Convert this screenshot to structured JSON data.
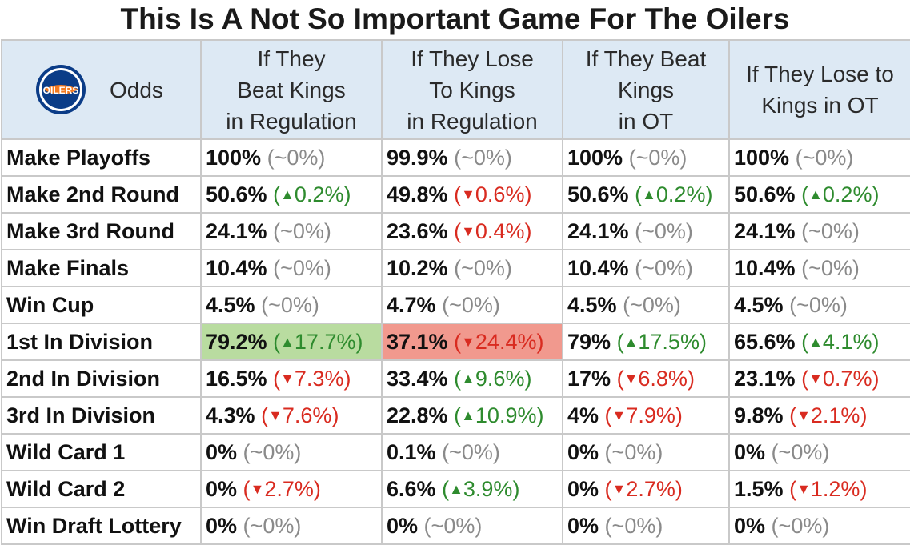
{
  "title": "This Is A Not So Important Game For The Oilers",
  "logo": {
    "text": "OILERS",
    "colors": {
      "blue": "#0b3c87",
      "orange": "#f47a20"
    }
  },
  "colors": {
    "up": "#2e8b2e",
    "down": "#d92b20",
    "neutral": "#8a8a8a",
    "header_bg": "#dde9f4",
    "highlight_green": "#b9dca0",
    "highlight_red": "#f1998e"
  },
  "chart_data": {
    "type": "table",
    "title": "This Is A Not So Important Game For The Oilers",
    "corner_label": "Odds",
    "columns": [
      [
        "If They",
        "Beat Kings",
        "in Regulation"
      ],
      [
        "If They Lose",
        "To Kings",
        "in Regulation"
      ],
      [
        "If They Beat",
        "Kings",
        "in OT"
      ],
      [
        "If They Lose to",
        "Kings in OT"
      ]
    ],
    "rows": [
      {
        "label": "Make Playoffs",
        "cells": [
          {
            "value": "100%",
            "change": "~0%",
            "dir": "neutral"
          },
          {
            "value": "99.9%",
            "change": "~0%",
            "dir": "neutral"
          },
          {
            "value": "100%",
            "change": "~0%",
            "dir": "neutral"
          },
          {
            "value": "100%",
            "change": "~0%",
            "dir": "neutral"
          }
        ]
      },
      {
        "label": "Make 2nd Round",
        "cells": [
          {
            "value": "50.6%",
            "change": "0.2%",
            "dir": "up"
          },
          {
            "value": "49.8%",
            "change": "0.6%",
            "dir": "down"
          },
          {
            "value": "50.6%",
            "change": "0.2%",
            "dir": "up"
          },
          {
            "value": "50.6%",
            "change": "0.2%",
            "dir": "up"
          }
        ]
      },
      {
        "label": "Make 3rd Round",
        "cells": [
          {
            "value": "24.1%",
            "change": "~0%",
            "dir": "neutral"
          },
          {
            "value": "23.6%",
            "change": "0.4%",
            "dir": "down"
          },
          {
            "value": "24.1%",
            "change": "~0%",
            "dir": "neutral"
          },
          {
            "value": "24.1%",
            "change": "~0%",
            "dir": "neutral"
          }
        ]
      },
      {
        "label": "Make Finals",
        "cells": [
          {
            "value": "10.4%",
            "change": "~0%",
            "dir": "neutral"
          },
          {
            "value": "10.2%",
            "change": "~0%",
            "dir": "neutral"
          },
          {
            "value": "10.4%",
            "change": "~0%",
            "dir": "neutral"
          },
          {
            "value": "10.4%",
            "change": "~0%",
            "dir": "neutral"
          }
        ]
      },
      {
        "label": "Win Cup",
        "cells": [
          {
            "value": "4.5%",
            "change": "~0%",
            "dir": "neutral"
          },
          {
            "value": "4.7%",
            "change": "~0%",
            "dir": "neutral"
          },
          {
            "value": "4.5%",
            "change": "~0%",
            "dir": "neutral"
          },
          {
            "value": "4.5%",
            "change": "~0%",
            "dir": "neutral"
          }
        ]
      },
      {
        "label": "1st In Division",
        "cells": [
          {
            "value": "79.2%",
            "change": "17.7%",
            "dir": "up",
            "highlight": "green"
          },
          {
            "value": "37.1%",
            "change": "24.4%",
            "dir": "down",
            "highlight": "red"
          },
          {
            "value": "79%",
            "change": "17.5%",
            "dir": "up"
          },
          {
            "value": "65.6%",
            "change": "4.1%",
            "dir": "up"
          }
        ]
      },
      {
        "label": "2nd In Division",
        "cells": [
          {
            "value": "16.5%",
            "change": "7.3%",
            "dir": "down"
          },
          {
            "value": "33.4%",
            "change": "9.6%",
            "dir": "up"
          },
          {
            "value": "17%",
            "change": "6.8%",
            "dir": "down"
          },
          {
            "value": "23.1%",
            "change": "0.7%",
            "dir": "down"
          }
        ]
      },
      {
        "label": "3rd In Division",
        "cells": [
          {
            "value": "4.3%",
            "change": "7.6%",
            "dir": "down"
          },
          {
            "value": "22.8%",
            "change": "10.9%",
            "dir": "up"
          },
          {
            "value": "4%",
            "change": "7.9%",
            "dir": "down"
          },
          {
            "value": "9.8%",
            "change": "2.1%",
            "dir": "down"
          }
        ]
      },
      {
        "label": "Wild Card 1",
        "cells": [
          {
            "value": "0%",
            "change": "~0%",
            "dir": "neutral"
          },
          {
            "value": "0.1%",
            "change": "~0%",
            "dir": "neutral"
          },
          {
            "value": "0%",
            "change": "~0%",
            "dir": "neutral"
          },
          {
            "value": "0%",
            "change": "~0%",
            "dir": "neutral"
          }
        ]
      },
      {
        "label": "Wild Card 2",
        "cells": [
          {
            "value": "0%",
            "change": "2.7%",
            "dir": "down"
          },
          {
            "value": "6.6%",
            "change": "3.9%",
            "dir": "up"
          },
          {
            "value": "0%",
            "change": "2.7%",
            "dir": "down"
          },
          {
            "value": "1.5%",
            "change": "1.2%",
            "dir": "down"
          }
        ]
      },
      {
        "label": "Win Draft Lottery",
        "cells": [
          {
            "value": "0%",
            "change": "~0%",
            "dir": "neutral"
          },
          {
            "value": "0%",
            "change": "~0%",
            "dir": "neutral"
          },
          {
            "value": "0%",
            "change": "~0%",
            "dir": "neutral"
          },
          {
            "value": "0%",
            "change": "~0%",
            "dir": "neutral"
          }
        ]
      }
    ]
  }
}
